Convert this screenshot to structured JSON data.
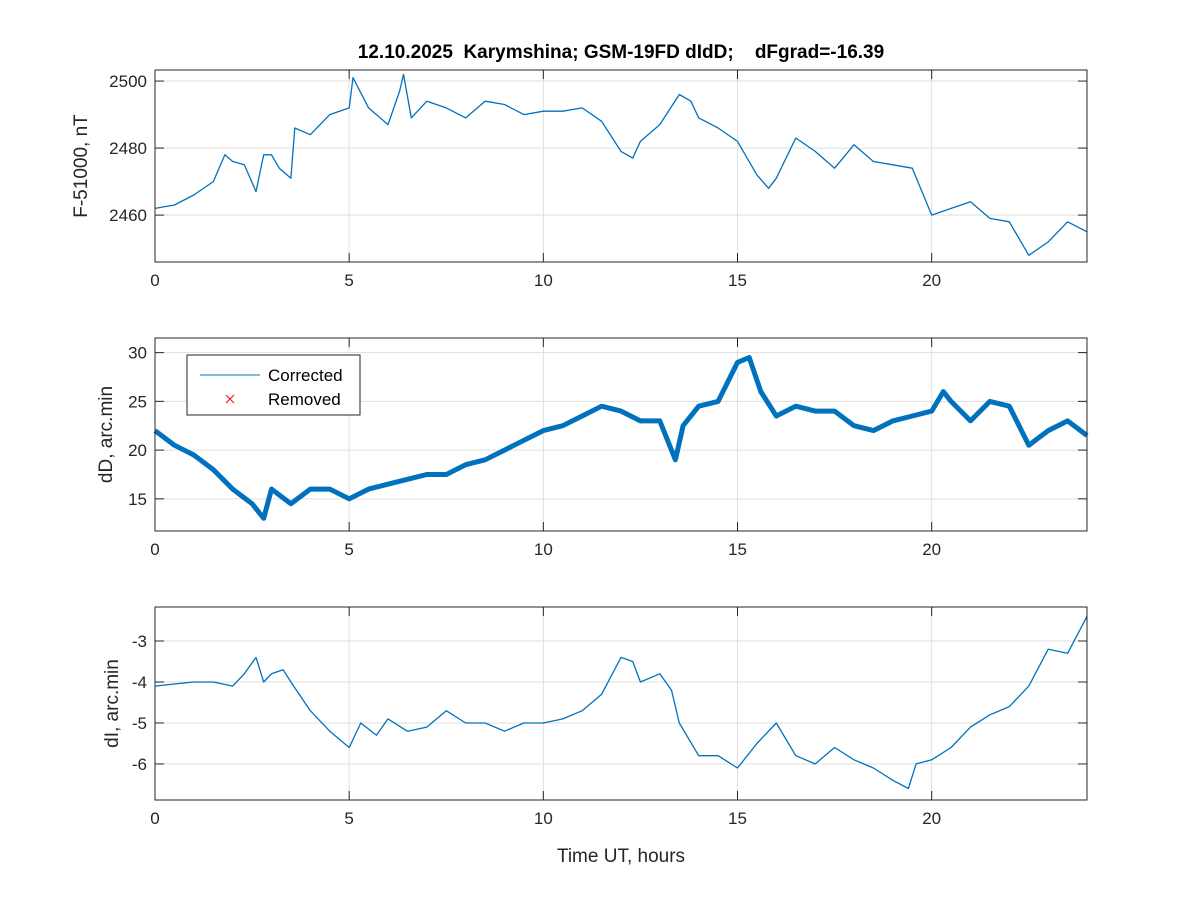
{
  "chart_data": [
    {
      "type": "line",
      "title": "12.10.2025  Karymshina; GSM-19FD dIdD;    dFgrad=-16.39",
      "xlabel": "",
      "ylabel": "F-51000, nT",
      "xlim": [
        0,
        24
      ],
      "ylim": [
        2446,
        2503.3
      ],
      "xticks": [
        0,
        5,
        10,
        15,
        20
      ],
      "yticks": [
        2460,
        2480,
        2500
      ],
      "grid": true,
      "color": "#0072BD",
      "points": [
        [
          0,
          2462
        ],
        [
          0.5,
          2463
        ],
        [
          1,
          2466
        ],
        [
          1.5,
          2470
        ],
        [
          1.8,
          2478
        ],
        [
          2,
          2476
        ],
        [
          2.3,
          2475
        ],
        [
          2.6,
          2467
        ],
        [
          2.8,
          2478
        ],
        [
          3,
          2478
        ],
        [
          3.2,
          2474
        ],
        [
          3.5,
          2471
        ],
        [
          3.6,
          2486
        ],
        [
          4,
          2484
        ],
        [
          4.5,
          2490
        ],
        [
          5,
          2492
        ],
        [
          5.1,
          2501
        ],
        [
          5.5,
          2492
        ],
        [
          6,
          2487
        ],
        [
          6.3,
          2497
        ],
        [
          6.4,
          2502
        ],
        [
          6.6,
          2489
        ],
        [
          7,
          2494
        ],
        [
          7.5,
          2492
        ],
        [
          8,
          2489
        ],
        [
          8.5,
          2494
        ],
        [
          9,
          2493
        ],
        [
          9.5,
          2490
        ],
        [
          10,
          2491
        ],
        [
          10.5,
          2491
        ],
        [
          11,
          2492
        ],
        [
          11.5,
          2488
        ],
        [
          12,
          2479
        ],
        [
          12.3,
          2477
        ],
        [
          12.5,
          2482
        ],
        [
          13,
          2487
        ],
        [
          13.5,
          2496
        ],
        [
          13.8,
          2494
        ],
        [
          14,
          2489
        ],
        [
          14.5,
          2486
        ],
        [
          15,
          2482
        ],
        [
          15.5,
          2472
        ],
        [
          15.8,
          2468
        ],
        [
          16,
          2471
        ],
        [
          16.5,
          2483
        ],
        [
          17,
          2479
        ],
        [
          17.5,
          2474
        ],
        [
          18,
          2481
        ],
        [
          18.5,
          2476
        ],
        [
          19,
          2475
        ],
        [
          19.5,
          2474
        ],
        [
          20,
          2460
        ],
        [
          20.5,
          2462
        ],
        [
          21,
          2464
        ],
        [
          21.5,
          2459
        ],
        [
          22,
          2458
        ],
        [
          22.5,
          2448
        ],
        [
          23,
          2452
        ],
        [
          23.5,
          2458
        ],
        [
          24,
          2455
        ]
      ]
    },
    {
      "type": "line",
      "ylabel": "dD, arc.min",
      "xlim": [
        0,
        24
      ],
      "ylim": [
        11.7,
        31.5
      ],
      "xticks": [
        0,
        5,
        10,
        15,
        20
      ],
      "yticks": [
        15,
        20,
        25,
        30
      ],
      "grid": true,
      "color": "#0072BD",
      "legend": {
        "placement": "top-left",
        "entries": [
          "Corrected",
          "Removed"
        ],
        "colors": [
          "#0072BD",
          "#FF0000"
        ]
      },
      "points": [
        [
          0,
          22
        ],
        [
          0.5,
          20.5
        ],
        [
          1,
          19.5
        ],
        [
          1.5,
          18
        ],
        [
          2,
          16
        ],
        [
          2.5,
          14.5
        ],
        [
          2.8,
          13
        ],
        [
          3,
          16
        ],
        [
          3.5,
          14.5
        ],
        [
          4,
          16
        ],
        [
          4.5,
          16
        ],
        [
          5,
          15
        ],
        [
          5.5,
          16
        ],
        [
          6,
          16.5
        ],
        [
          6.5,
          17
        ],
        [
          7,
          17.5
        ],
        [
          7.5,
          17.5
        ],
        [
          8,
          18.5
        ],
        [
          8.5,
          19
        ],
        [
          9,
          20
        ],
        [
          9.5,
          21
        ],
        [
          10,
          22
        ],
        [
          10.5,
          22.5
        ],
        [
          11,
          23.5
        ],
        [
          11.5,
          24.5
        ],
        [
          12,
          24
        ],
        [
          12.5,
          23
        ],
        [
          13,
          23
        ],
        [
          13.4,
          19
        ],
        [
          13.6,
          22.5
        ],
        [
          14,
          24.5
        ],
        [
          14.5,
          25
        ],
        [
          15,
          29
        ],
        [
          15.3,
          29.5
        ],
        [
          15.6,
          26
        ],
        [
          16,
          23.5
        ],
        [
          16.5,
          24.5
        ],
        [
          17,
          24
        ],
        [
          17.5,
          24
        ],
        [
          18,
          22.5
        ],
        [
          18.5,
          22
        ],
        [
          19,
          23
        ],
        [
          19.5,
          23.5
        ],
        [
          20,
          24
        ],
        [
          20.3,
          26
        ],
        [
          20.5,
          25
        ],
        [
          21,
          23
        ],
        [
          21.5,
          25
        ],
        [
          22,
          24.5
        ],
        [
          22.5,
          20.5
        ],
        [
          23,
          22
        ],
        [
          23.5,
          23
        ],
        [
          24,
          21.5
        ]
      ]
    },
    {
      "type": "line",
      "xlabel": "Time UT, hours",
      "ylabel": "dI, arc.min",
      "xlim": [
        0,
        24
      ],
      "ylim": [
        -6.88,
        -2.17
      ],
      "xticks": [
        0,
        5,
        10,
        15,
        20
      ],
      "yticks": [
        -6,
        -5,
        -4,
        -3
      ],
      "grid": true,
      "color": "#0072BD",
      "points": [
        [
          0,
          -4.1
        ],
        [
          0.5,
          -4.05
        ],
        [
          1,
          -4.0
        ],
        [
          1.5,
          -4.0
        ],
        [
          2,
          -4.1
        ],
        [
          2.3,
          -3.8
        ],
        [
          2.6,
          -3.4
        ],
        [
          2.8,
          -4.0
        ],
        [
          3,
          -3.8
        ],
        [
          3.3,
          -3.7
        ],
        [
          3.5,
          -4.0
        ],
        [
          4,
          -4.7
        ],
        [
          4.5,
          -5.2
        ],
        [
          5,
          -5.6
        ],
        [
          5.3,
          -5.0
        ],
        [
          5.7,
          -5.3
        ],
        [
          6,
          -4.9
        ],
        [
          6.5,
          -5.2
        ],
        [
          7,
          -5.1
        ],
        [
          7.5,
          -4.7
        ],
        [
          8,
          -5.0
        ],
        [
          8.5,
          -5.0
        ],
        [
          9,
          -5.2
        ],
        [
          9.5,
          -5.0
        ],
        [
          10,
          -5.0
        ],
        [
          10.5,
          -4.9
        ],
        [
          11,
          -4.7
        ],
        [
          11.5,
          -4.3
        ],
        [
          12,
          -3.4
        ],
        [
          12.3,
          -3.5
        ],
        [
          12.5,
          -4.0
        ],
        [
          13,
          -3.8
        ],
        [
          13.3,
          -4.2
        ],
        [
          13.5,
          -5.0
        ],
        [
          14,
          -5.8
        ],
        [
          14.5,
          -5.8
        ],
        [
          15,
          -6.1
        ],
        [
          15.5,
          -5.5
        ],
        [
          16,
          -5.0
        ],
        [
          16.5,
          -5.8
        ],
        [
          17,
          -6.0
        ],
        [
          17.5,
          -5.6
        ],
        [
          18,
          -5.9
        ],
        [
          18.5,
          -6.1
        ],
        [
          19,
          -6.4
        ],
        [
          19.4,
          -6.6
        ],
        [
          19.6,
          -6.0
        ],
        [
          20,
          -5.9
        ],
        [
          20.5,
          -5.6
        ],
        [
          21,
          -5.1
        ],
        [
          21.5,
          -4.8
        ],
        [
          22,
          -4.6
        ],
        [
          22.5,
          -4.1
        ],
        [
          23,
          -3.2
        ],
        [
          23.5,
          -3.3
        ],
        [
          24,
          -2.4
        ]
      ]
    }
  ]
}
